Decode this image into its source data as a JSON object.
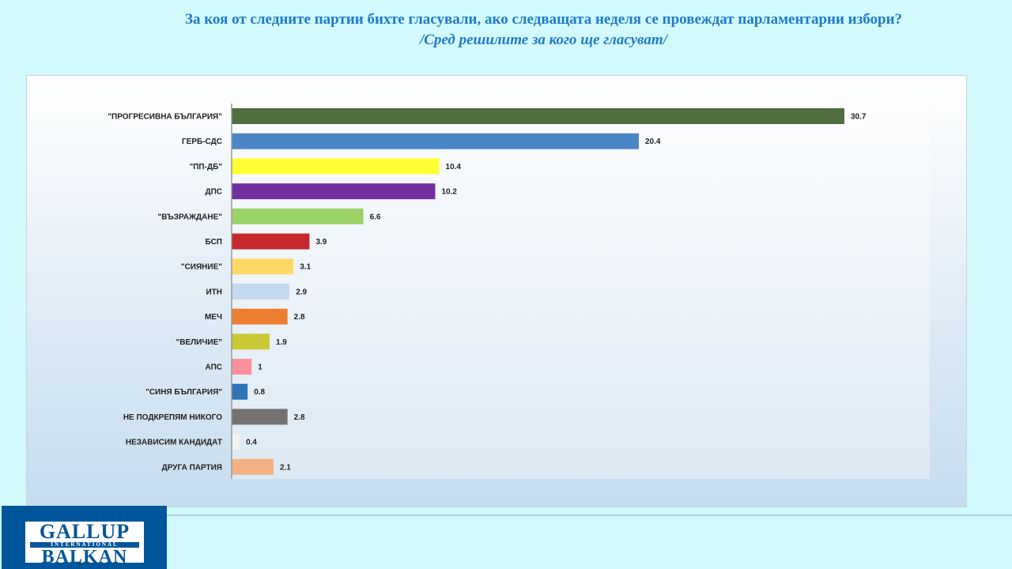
{
  "chart_data": {
    "type": "bar",
    "orientation": "horizontal",
    "title": "За коя от следните партии бихте  гласували,  ако следващата неделя се провеждат парламентарни избори?",
    "subtitle": "/Сред решилите за кого ще гласуват/",
    "categories": [
      "\"ПРОГРЕСИВНА БЪЛГАРИЯ\"",
      "ГЕРБ-СДС",
      "\"ПП-ДБ\"",
      "ДПС",
      "\"ВЪЗРАЖДАНЕ\"",
      "БСП",
      "\"СИЯНИЕ\"",
      "ИТН",
      "МЕЧ",
      "\"ВЕЛИЧИЕ\"",
      "АПС",
      "\"СИНЯ БЪЛГАРИЯ\"",
      "НЕ ПОДКРЕПЯМ НИКОГО",
      "НЕЗАВИСИМ КАНДИДАТ",
      "ДРУГА ПАРТИЯ"
    ],
    "values": [
      30.7,
      20.4,
      10.4,
      10.2,
      6.6,
      3.9,
      3.1,
      2.9,
      2.8,
      1.9,
      1,
      0.8,
      2.8,
      0.4,
      2.1
    ],
    "value_labels": [
      "30.7",
      "20.4",
      "10.4",
      "10.2",
      "6.6",
      "3.9",
      "3.1",
      "2.9",
      "2.8",
      "1.9",
      "1",
      "0.8",
      "2.8",
      "0.4",
      "2.1"
    ],
    "colors": [
      "#4f6f3f",
      "#4a86c5",
      "#ffff33",
      "#7030a0",
      "#9bd266",
      "#c5282d",
      "#ffd966",
      "#c5d9f1",
      "#ed7d31",
      "#c9c935",
      "#ff8f9a",
      "#2e75b6",
      "#767171",
      "#f2f2f2",
      "#f4b183"
    ],
    "xlim": [
      0,
      35
    ],
    "grid": false,
    "legend": "none"
  },
  "logo": {
    "line1": "GALLUP",
    "line2": "INTERNATIONAL",
    "line3": "BALKAN"
  }
}
